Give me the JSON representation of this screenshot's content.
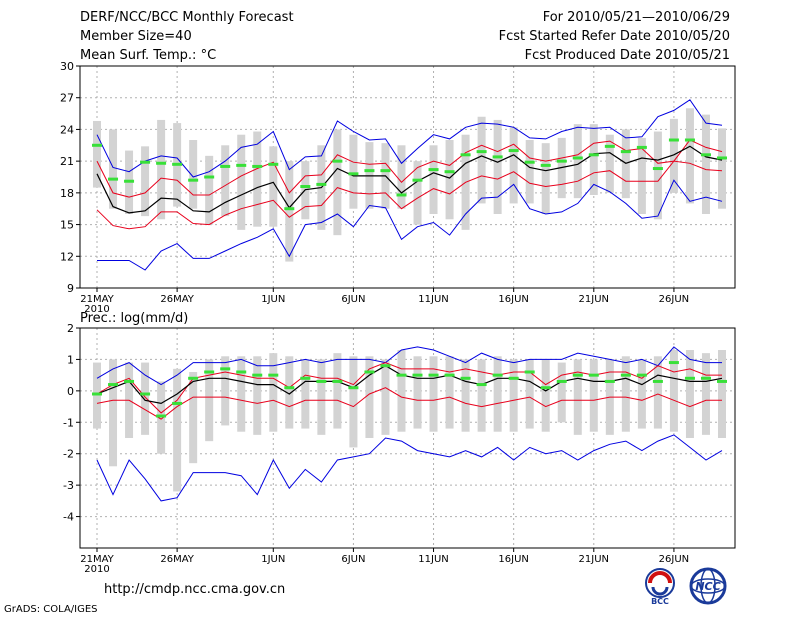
{
  "header": {
    "title": "DERF/NCC/BCC Monthly Forecast",
    "member_size": "Member Size=40",
    "variable": "Mean Surf. Temp.: °C",
    "forecast_period": "For 2010/05/21—2010/06/29",
    "refer_date": "Fcst Started Refer Date 2010/05/20",
    "produced_date": "Fcst Produced Date 2010/05/21"
  },
  "footer": {
    "url": "http://cmdp.ncc.cma.gov.cn",
    "credit": "GrADS: COLA/IGES",
    "logo_left_text": "BCC",
    "logo_right_text": "NCC"
  },
  "colors": {
    "box": "#d3d3d3",
    "mean": "#000000",
    "inner": "#e8001c",
    "outer": "#0000e0",
    "obs": "#38e038",
    "grid": "#b0b0b0"
  },
  "chart_data": [
    {
      "type": "line",
      "title": "Mean Surf. Temp.: °C",
      "ylim": [
        9,
        30
      ],
      "yticks": [
        9,
        12,
        15,
        18,
        21,
        24,
        27,
        30
      ],
      "xticks": [
        {
          "day": 0,
          "label": "21MAY",
          "sub": "2010"
        },
        {
          "day": 5,
          "label": "26MAY"
        },
        {
          "day": 11,
          "label": "1JUN"
        },
        {
          "day": 16,
          "label": "6JUN"
        },
        {
          "day": 21,
          "label": "11JUN"
        },
        {
          "day": 26,
          "label": "16JUN"
        },
        {
          "day": 31,
          "label": "21JUN"
        },
        {
          "day": 36,
          "label": "26JUN"
        }
      ],
      "days": 40,
      "series": [
        {
          "name": "box_high",
          "values": [
            24.8,
            24.0,
            22.0,
            22.4,
            24.9,
            24.6,
            23.0,
            21.5,
            22.5,
            23.5,
            23.8,
            22.4,
            21.0,
            21.0,
            22.5,
            24.0,
            23.5,
            22.8,
            22.7,
            22.5,
            21.0,
            22.5,
            23.0,
            23.5,
            25.2,
            24.9,
            24.2,
            23.0,
            22.7,
            23.2,
            24.5,
            24.5,
            23.5,
            24.0,
            23.2,
            23.8,
            25.0,
            26.0,
            25.4,
            24.1
          ]
        },
        {
          "name": "box_low",
          "values": [
            18.5,
            16.5,
            16.0,
            15.8,
            15.5,
            16.7,
            16.5,
            15.0,
            15.8,
            14.5,
            14.8,
            14.8,
            11.5,
            15.5,
            14.5,
            14.0,
            16.5,
            16.5,
            16.5,
            16.5,
            15.0,
            16.0,
            15.5,
            14.5,
            17.0,
            16.0,
            17.0,
            17.0,
            16.0,
            17.5,
            17.5,
            17.8,
            18.0,
            17.5,
            16.0,
            15.5,
            18.0,
            17.0,
            16.0,
            16.5
          ]
        },
        {
          "name": "max_member",
          "values": [
            23.5,
            20.4,
            20.0,
            21.0,
            21.5,
            21.3,
            19.5,
            20.0,
            21.0,
            22.3,
            22.6,
            23.8,
            20.2,
            21.4,
            21.5,
            24.8,
            23.8,
            23.0,
            23.1,
            20.8,
            22.2,
            23.5,
            23.1,
            24.2,
            24.6,
            24.5,
            24.2,
            23.2,
            23.1,
            23.8,
            24.2,
            24.1,
            24.2,
            23.2,
            23.3,
            25.2,
            25.8,
            26.8,
            24.6,
            24.4
          ]
        },
        {
          "name": "upper",
          "values": [
            21.0,
            18.0,
            17.6,
            18.0,
            19.4,
            19.2,
            17.8,
            17.8,
            18.7,
            19.6,
            20.3,
            20.9,
            18.0,
            19.6,
            19.7,
            21.6,
            20.9,
            20.7,
            20.8,
            19.0,
            20.4,
            21.0,
            20.6,
            21.8,
            22.5,
            21.9,
            22.6,
            21.3,
            21.0,
            21.3,
            21.6,
            22.7,
            22.9,
            22.0,
            22.2,
            20.8,
            21.0,
            23.0,
            22.3,
            21.9
          ]
        },
        {
          "name": "mean",
          "values": [
            19.8,
            16.7,
            16.1,
            16.3,
            17.5,
            17.4,
            16.3,
            16.2,
            17.1,
            17.8,
            18.5,
            19.0,
            16.6,
            18.3,
            18.5,
            20.3,
            19.6,
            19.6,
            19.6,
            18.0,
            19.1,
            19.9,
            19.4,
            20.8,
            21.5,
            20.9,
            21.6,
            20.4,
            20.1,
            20.4,
            20.7,
            21.7,
            21.8,
            20.8,
            21.3,
            21.1,
            21.6,
            22.4,
            21.4,
            21.1
          ]
        },
        {
          "name": "lower",
          "values": [
            16.4,
            14.9,
            14.6,
            14.8,
            16.2,
            16.2,
            15.1,
            15.0,
            15.9,
            16.5,
            16.9,
            17.3,
            15.7,
            16.7,
            16.8,
            18.5,
            18.0,
            17.9,
            18.0,
            16.5,
            17.5,
            18.4,
            17.9,
            19.0,
            19.6,
            19.3,
            20.0,
            18.9,
            18.6,
            18.8,
            19.1,
            19.9,
            20.1,
            19.1,
            19.1,
            19.1,
            21.0,
            20.8,
            20.2,
            20.1
          ]
        },
        {
          "name": "min_member",
          "values": [
            11.6,
            11.6,
            11.6,
            10.7,
            12.5,
            13.2,
            11.8,
            11.8,
            12.5,
            13.2,
            13.8,
            14.6,
            12.0,
            15.0,
            15.2,
            16.0,
            14.8,
            16.8,
            16.6,
            13.6,
            14.8,
            15.2,
            14.0,
            16.0,
            17.5,
            17.6,
            18.8,
            16.5,
            16.0,
            16.2,
            17.0,
            18.8,
            18.1,
            17.0,
            15.6,
            15.8,
            19.2,
            17.2,
            17.6,
            17.2
          ]
        },
        {
          "name": "observed",
          "values": [
            22.5,
            19.3,
            19.1,
            20.9,
            20.8,
            20.7,
            19.2,
            19.5,
            20.5,
            20.6,
            20.5,
            20.7,
            16.5,
            18.6,
            18.8,
            21.0,
            19.8,
            20.1,
            20.1,
            17.8,
            19.2,
            20.2,
            20.0,
            21.6,
            21.9,
            21.4,
            22.0,
            20.9,
            20.6,
            21.0,
            21.3,
            21.6,
            22.4,
            21.9,
            22.3,
            20.3,
            23.0,
            23.0,
            21.6,
            21.3
          ]
        }
      ]
    },
    {
      "type": "line",
      "title": "Prec.: log(mm/d)",
      "ylim": [
        -5,
        2
      ],
      "yticks": [
        -4,
        -3,
        -2,
        -1,
        0,
        1,
        2
      ],
      "xticks": [
        {
          "day": 0,
          "label": "21MAY",
          "sub": "2010"
        },
        {
          "day": 5,
          "label": "26MAY"
        },
        {
          "day": 11,
          "label": "1JUN"
        },
        {
          "day": 16,
          "label": "6JUN"
        },
        {
          "day": 21,
          "label": "11JUN"
        },
        {
          "day": 26,
          "label": "16JUN"
        },
        {
          "day": 31,
          "label": "21JUN"
        },
        {
          "day": 36,
          "label": "26JUN"
        }
      ],
      "days": 40,
      "series": [
        {
          "name": "box_high",
          "values": [
            0.9,
            1.0,
            0.9,
            0.9,
            0.3,
            0.7,
            0.6,
            1.0,
            1.1,
            1.1,
            1.1,
            1.2,
            1.1,
            1.0,
            1.0,
            1.2,
            1.1,
            1.1,
            1.0,
            1.3,
            1.1,
            1.1,
            1.1,
            1.0,
            1.0,
            1.1,
            1.0,
            1.0,
            1.0,
            0.9,
            1.0,
            1.0,
            1.0,
            1.1,
            1.0,
            1.1,
            1.3,
            1.3,
            1.2,
            1.3
          ]
        },
        {
          "name": "box_low",
          "values": [
            -1.2,
            -2.4,
            -1.5,
            -1.4,
            -2.0,
            -3.2,
            -2.3,
            -1.6,
            -1.1,
            -1.3,
            -1.4,
            -1.3,
            -1.2,
            -1.2,
            -1.4,
            -1.2,
            -1.8,
            -1.5,
            -1.4,
            -1.3,
            -1.2,
            -1.3,
            -1.2,
            -1.3,
            -1.3,
            -1.3,
            -1.3,
            -1.2,
            -1.3,
            -1.0,
            -1.4,
            -1.3,
            -1.4,
            -1.3,
            -1.2,
            -1.2,
            -1.3,
            -1.5,
            -1.4,
            -1.5
          ]
        },
        {
          "name": "max_member",
          "values": [
            0.4,
            0.7,
            0.9,
            0.5,
            0.2,
            0.5,
            0.9,
            0.9,
            0.9,
            1.0,
            0.8,
            0.8,
            0.9,
            1.0,
            0.9,
            1.0,
            1.0,
            1.0,
            0.9,
            1.3,
            1.4,
            1.3,
            1.1,
            0.9,
            1.2,
            1.0,
            0.9,
            1.0,
            1.0,
            1.0,
            1.2,
            1.1,
            1.0,
            0.9,
            1.0,
            0.8,
            1.4,
            1.0,
            0.9,
            0.9
          ]
        },
        {
          "name": "upper",
          "values": [
            -0.1,
            0.2,
            0.4,
            -0.2,
            -0.7,
            -0.3,
            0.4,
            0.5,
            0.6,
            0.5,
            0.4,
            0.4,
            0.1,
            0.5,
            0.4,
            0.4,
            0.2,
            0.7,
            0.9,
            0.7,
            0.7,
            0.7,
            0.6,
            0.7,
            0.6,
            0.5,
            0.6,
            0.6,
            0.2,
            0.5,
            0.6,
            0.5,
            0.6,
            0.6,
            0.4,
            0.8,
            0.6,
            0.7,
            0.5,
            0.5
          ]
        },
        {
          "name": "mean",
          "values": [
            -0.1,
            0.1,
            0.3,
            -0.3,
            -0.4,
            -0.1,
            0.3,
            0.4,
            0.4,
            0.3,
            0.2,
            0.2,
            -0.1,
            0.3,
            0.3,
            0.3,
            0.1,
            0.5,
            0.8,
            0.5,
            0.4,
            0.4,
            0.5,
            0.3,
            0.2,
            0.4,
            0.4,
            0.3,
            0.0,
            0.3,
            0.4,
            0.3,
            0.3,
            0.4,
            0.2,
            0.5,
            0.4,
            0.3,
            0.3,
            0.4
          ]
        },
        {
          "name": "lower",
          "values": [
            -0.4,
            -0.3,
            -0.3,
            -0.6,
            -0.9,
            -0.5,
            -0.2,
            -0.2,
            -0.2,
            -0.3,
            -0.4,
            -0.3,
            -0.5,
            -0.3,
            -0.3,
            -0.3,
            -0.5,
            -0.1,
            0.1,
            -0.2,
            -0.3,
            -0.3,
            -0.2,
            -0.4,
            -0.5,
            -0.4,
            -0.3,
            -0.2,
            -0.5,
            -0.3,
            -0.3,
            -0.3,
            -0.2,
            -0.2,
            -0.3,
            -0.1,
            -0.3,
            -0.5,
            -0.3,
            -0.3
          ]
        },
        {
          "name": "min_member",
          "values": [
            -2.2,
            -3.3,
            -2.2,
            -2.8,
            -3.5,
            -3.4,
            -2.6,
            -2.6,
            -2.6,
            -2.7,
            -3.3,
            -2.2,
            -3.1,
            -2.5,
            -2.9,
            -2.2,
            -2.1,
            -2.0,
            -1.5,
            -1.6,
            -1.9,
            -2.0,
            -2.1,
            -1.9,
            -2.1,
            -1.8,
            -2.2,
            -1.8,
            -2.0,
            -1.9,
            -2.2,
            -1.9,
            -1.7,
            -1.6,
            -1.9,
            -1.6,
            -1.4,
            -1.8,
            -2.2,
            -1.9
          ]
        },
        {
          "name": "observed",
          "values": [
            -0.1,
            0.2,
            0.3,
            -0.1,
            -0.8,
            -0.4,
            0.4,
            0.6,
            0.7,
            0.6,
            0.5,
            0.5,
            0.1,
            0.4,
            0.3,
            0.3,
            0.1,
            0.6,
            0.8,
            0.5,
            0.5,
            0.5,
            0.5,
            0.4,
            0.2,
            0.5,
            0.4,
            0.6,
            0.1,
            0.3,
            0.5,
            0.5,
            0.3,
            0.5,
            0.5,
            0.3,
            0.9,
            0.4,
            0.4,
            0.3
          ]
        }
      ]
    }
  ]
}
